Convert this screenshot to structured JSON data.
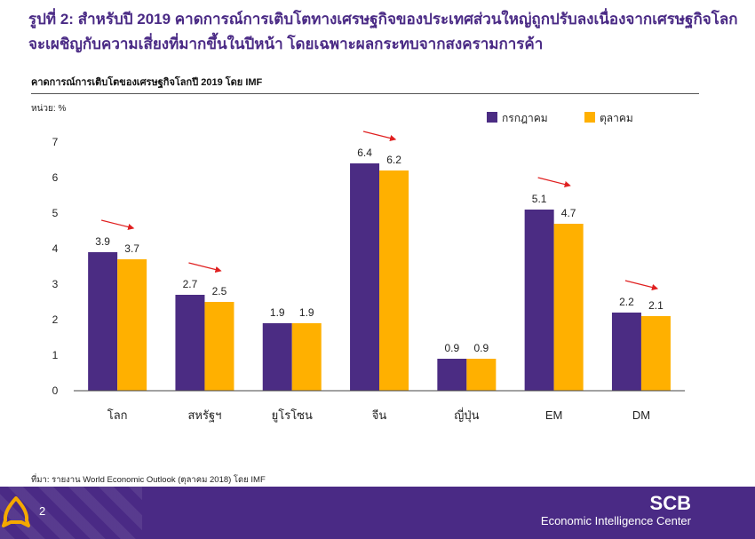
{
  "header": {
    "title": "รูปที่ 2: สำหรับปี 2019 คาดการณ์การเติบโตทางเศรษฐกิจของประเทศส่วนใหญ่ถูกปรับลงเนื่องจากเศรษฐกิจโลกจะเผชิญกับความเสี่ยงที่มากขึ้นในปีหน้า โดยเฉพาะผลกระทบจากสงครามการค้า"
  },
  "chart_data": {
    "type": "bar",
    "title": "คาดการณ์การเติบโตของเศรษฐกิจโลกปี 2019 โดย IMF",
    "ylabel": "หน่วย: %",
    "xlabel": "",
    "ylim": [
      0,
      7
    ],
    "yticks": [
      "0",
      "1",
      "2",
      "3",
      "4",
      "5",
      "6",
      "7"
    ],
    "categories": [
      "โลก",
      "สหรัฐฯ",
      "ยูโรโซน",
      "จีน",
      "ญี่ปุ่น",
      "EM",
      "DM"
    ],
    "series": [
      {
        "name": "กรกฎาคม",
        "color": "#4b2c83",
        "values": [
          3.9,
          2.7,
          1.9,
          6.4,
          0.9,
          5.1,
          2.2
        ],
        "labels": [
          "3.9",
          "2.7",
          "1.9",
          "6.4",
          "0.9",
          "5.1",
          "2.2"
        ]
      },
      {
        "name": "ตุลาคม",
        "color": "#ffb000",
        "values": [
          3.7,
          2.5,
          1.9,
          6.2,
          0.9,
          4.7,
          2.1
        ],
        "labels": [
          "3.7",
          "2.5",
          "1.9",
          "6.2",
          "0.9",
          "4.7",
          "2.1"
        ]
      }
    ],
    "downgrade_arrows": [
      true,
      true,
      false,
      true,
      false,
      true,
      true
    ],
    "arrow_color": "#e02020",
    "legend": "top-right",
    "grid": false
  },
  "source": "ที่มา: รายงาน World Economic Outlook (ตุลาคม 2018) โดย IMF",
  "footer": {
    "page_number": "2",
    "brand": "SCB",
    "brand_sub": "Economic Intelligence Center",
    "logo_color": "#f5a800"
  }
}
